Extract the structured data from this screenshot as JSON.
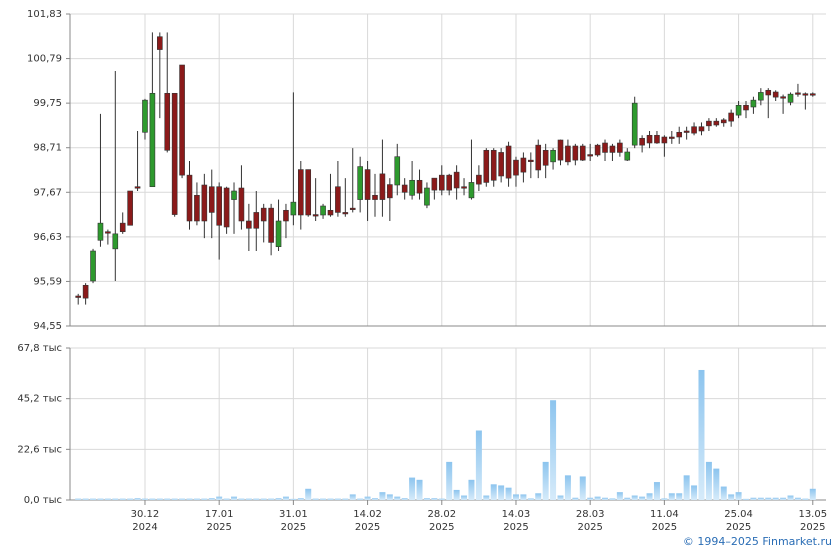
{
  "chart_data": [
    {
      "type": "candlestick",
      "up_color": "#2e9a2e",
      "down_color": "#8b1a1a",
      "open": [
        95.25,
        95.5,
        95.6,
        96.55,
        96.75,
        96.35,
        96.95,
        97.7,
        97.8,
        99.07,
        97.8,
        101.3,
        99.98,
        99.98,
        100.64,
        98.07,
        97.6,
        97.84,
        97.8,
        97.8,
        97.77,
        97.5,
        97.77,
        97.0,
        97.2,
        97.3,
        97.3,
        96.4,
        97.25,
        97.14,
        98.2,
        98.2,
        97.15,
        97.14,
        97.25,
        97.8,
        97.2,
        97.3,
        97.5,
        98.2,
        97.6,
        98.1,
        97.85,
        97.84,
        97.84,
        97.6,
        97.95,
        97.37,
        98.0,
        98.07,
        98.07,
        98.14,
        97.8,
        97.54,
        98.07,
        98.65,
        98.65,
        98.6,
        98.75,
        98.42,
        98.47,
        98.42,
        98.77,
        98.65,
        98.38,
        98.89,
        98.75,
        98.75,
        98.75,
        98.55,
        98.77,
        98.82,
        98.75,
        98.82,
        98.42,
        98.77,
        98.93,
        99.0,
        99.0,
        98.96,
        98.96,
        99.07,
        99.1,
        99.2,
        99.2,
        99.33,
        99.33,
        99.36,
        99.52,
        99.47,
        99.7,
        99.66,
        99.82,
        100.05,
        100.01,
        99.9,
        99.77,
        99.99,
        99.97,
        99.97
      ],
      "high": [
        95.3,
        95.55,
        96.35,
        99.5,
        96.8,
        100.5,
        97.2,
        97.7,
        99.1,
        99.85,
        101.4,
        101.4,
        101.4,
        99.98,
        100.64,
        98.4,
        97.9,
        98.1,
        98.2,
        97.9,
        97.8,
        97.9,
        98.3,
        97.4,
        97.7,
        97.4,
        97.4,
        97.5,
        97.4,
        100.0,
        98.4,
        98.2,
        98.0,
        97.4,
        98.1,
        98.4,
        98.0,
        98.7,
        98.5,
        98.4,
        98.1,
        98.9,
        98.0,
        98.8,
        98.0,
        98.4,
        98.2,
        97.9,
        98.0,
        98.3,
        98.1,
        98.3,
        98.0,
        98.9,
        98.3,
        98.7,
        98.7,
        98.7,
        98.85,
        98.5,
        98.6,
        98.6,
        98.9,
        98.8,
        98.7,
        98.9,
        98.9,
        98.8,
        98.8,
        98.8,
        98.8,
        98.9,
        98.8,
        98.9,
        98.7,
        99.9,
        99.0,
        99.1,
        99.1,
        99.0,
        99.1,
        99.2,
        99.2,
        99.3,
        99.3,
        99.4,
        99.4,
        99.4,
        99.6,
        99.8,
        99.8,
        99.9,
        100.1,
        100.1,
        100.05,
        99.95,
        100.0,
        100.2,
        100.0,
        100.0
      ],
      "low": [
        95.05,
        95.05,
        95.55,
        96.4,
        96.45,
        95.6,
        96.7,
        96.9,
        97.7,
        98.9,
        97.8,
        99.4,
        98.6,
        97.1,
        98.0,
        96.8,
        96.9,
        96.6,
        96.6,
        96.1,
        96.7,
        96.7,
        96.8,
        96.3,
        96.3,
        96.5,
        96.2,
        96.3,
        96.6,
        96.9,
        96.8,
        97.1,
        97.0,
        97.05,
        97.1,
        97.1,
        97.1,
        97.2,
        97.2,
        97.0,
        97.1,
        97.1,
        97.0,
        97.6,
        97.5,
        97.5,
        97.5,
        97.3,
        97.5,
        97.6,
        97.6,
        97.5,
        97.6,
        97.5,
        97.7,
        97.8,
        97.8,
        97.9,
        97.8,
        97.8,
        97.9,
        98.0,
        98.0,
        98.0,
        98.2,
        98.3,
        98.3,
        98.3,
        98.4,
        98.4,
        98.5,
        98.4,
        98.4,
        98.5,
        98.4,
        98.7,
        98.6,
        98.7,
        98.8,
        98.5,
        98.8,
        98.8,
        98.9,
        99.0,
        99.0,
        99.1,
        99.2,
        99.2,
        99.2,
        99.4,
        99.4,
        99.5,
        99.7,
        99.4,
        99.8,
        99.5,
        99.7,
        99.9,
        99.6,
        99.9
      ],
      "close": [
        95.25,
        95.2,
        96.3,
        96.95,
        96.75,
        96.7,
        96.75,
        96.9,
        97.78,
        99.82,
        99.98,
        101.0,
        98.65,
        97.15,
        98.07,
        97.0,
        97.0,
        97.0,
        97.2,
        96.9,
        96.86,
        97.7,
        97.0,
        96.83,
        96.83,
        97.0,
        96.5,
        97.0,
        97.0,
        97.44,
        97.14,
        97.14,
        97.12,
        97.35,
        97.14,
        97.2,
        97.2,
        97.28,
        98.27,
        97.5,
        97.5,
        97.5,
        97.54,
        98.5,
        97.67,
        97.95,
        97.65,
        97.77,
        97.72,
        97.72,
        97.72,
        97.77,
        97.8,
        97.9,
        97.86,
        97.9,
        97.95,
        98.05,
        98.0,
        98.07,
        98.14,
        98.4,
        98.19,
        98.3,
        98.65,
        98.42,
        98.38,
        98.42,
        98.42,
        98.53,
        98.54,
        98.6,
        98.6,
        98.6,
        98.61,
        99.75,
        98.77,
        98.82,
        98.82,
        98.82,
        98.96,
        98.96,
        99.1,
        99.05,
        99.1,
        99.22,
        99.24,
        99.29,
        99.33,
        99.7,
        99.59,
        99.82,
        100.0,
        99.94,
        99.89,
        99.9,
        99.96,
        99.99,
        99.96,
        99.97
      ],
      "ylim": [
        94.55,
        101.83
      ],
      "yticks": [
        {
          "value": 94.55,
          "label": "94,55"
        },
        {
          "value": 95.59,
          "label": "95,59"
        },
        {
          "value": 96.63,
          "label": "96,63"
        },
        {
          "value": 97.67,
          "label": "97,67"
        },
        {
          "value": 98.71,
          "label": "98,71"
        },
        {
          "value": 99.75,
          "label": "99,75"
        },
        {
          "value": 100.79,
          "label": "100,79"
        },
        {
          "value": 101.83,
          "label": "101,83"
        }
      ],
      "grid": true
    },
    {
      "type": "bar",
      "values": [
        0.6,
        0.6,
        0.6,
        0.6,
        0.6,
        0.6,
        0.6,
        0.6,
        0.8,
        0.6,
        0.6,
        0.6,
        0.6,
        0.6,
        0.6,
        0.6,
        0.6,
        0.6,
        0.8,
        1.5,
        0.6,
        1.5,
        0.6,
        0.6,
        0.6,
        0.6,
        0.6,
        0.8,
        1.5,
        0.5,
        0.8,
        5,
        0.6,
        0.6,
        0.6,
        0.6,
        0.6,
        2.5,
        0.6,
        1.5,
        0.8,
        3.5,
        2.5,
        1.5,
        0.8,
        10,
        9,
        0.8,
        0.8,
        0.6,
        17,
        4.5,
        2,
        9,
        31,
        2,
        7,
        6.5,
        5.5,
        2.5,
        2.5,
        0.7,
        3,
        17,
        44.5,
        2,
        11,
        1,
        10.5,
        1,
        1.5,
        1,
        0.7,
        3.5,
        1,
        2,
        1.5,
        3,
        8,
        0.7,
        3,
        3,
        11,
        6.5,
        58,
        17,
        14,
        6,
        2.5,
        3.5,
        0.5,
        1,
        1,
        1,
        1,
        1,
        2,
        1,
        0.6,
        5
      ],
      "ylim": [
        0,
        67.8
      ],
      "yticks": [
        {
          "value": 0,
          "label": "0,0 тыс"
        },
        {
          "value": 22.6,
          "label": "22,6 тыс"
        },
        {
          "value": 45.2,
          "label": "45,2 тыс"
        },
        {
          "value": 67.8,
          "label": "67,8 тыс"
        }
      ],
      "xticks": [
        {
          "value": 9,
          "label": [
            "30.12",
            "2024"
          ]
        },
        {
          "value": 19,
          "label": [
            "17.01",
            "2025"
          ]
        },
        {
          "value": 29,
          "label": [
            "31.01",
            "2025"
          ]
        },
        {
          "value": 39,
          "label": [
            "14.02",
            "2025"
          ]
        },
        {
          "value": 49,
          "label": [
            "28.02",
            "2025"
          ]
        },
        {
          "value": 59,
          "label": [
            "14.03",
            "2025"
          ]
        },
        {
          "value": 69,
          "label": [
            "28.03",
            "2025"
          ]
        },
        {
          "value": 79,
          "label": [
            "11.04",
            "2025"
          ]
        },
        {
          "value": 89,
          "label": [
            "25.04",
            "2025"
          ]
        },
        {
          "value": 99,
          "label": [
            "13.05",
            "2025"
          ]
        }
      ],
      "grid": true
    }
  ],
  "footer": "© 1994–2025 Finmarket.ru"
}
